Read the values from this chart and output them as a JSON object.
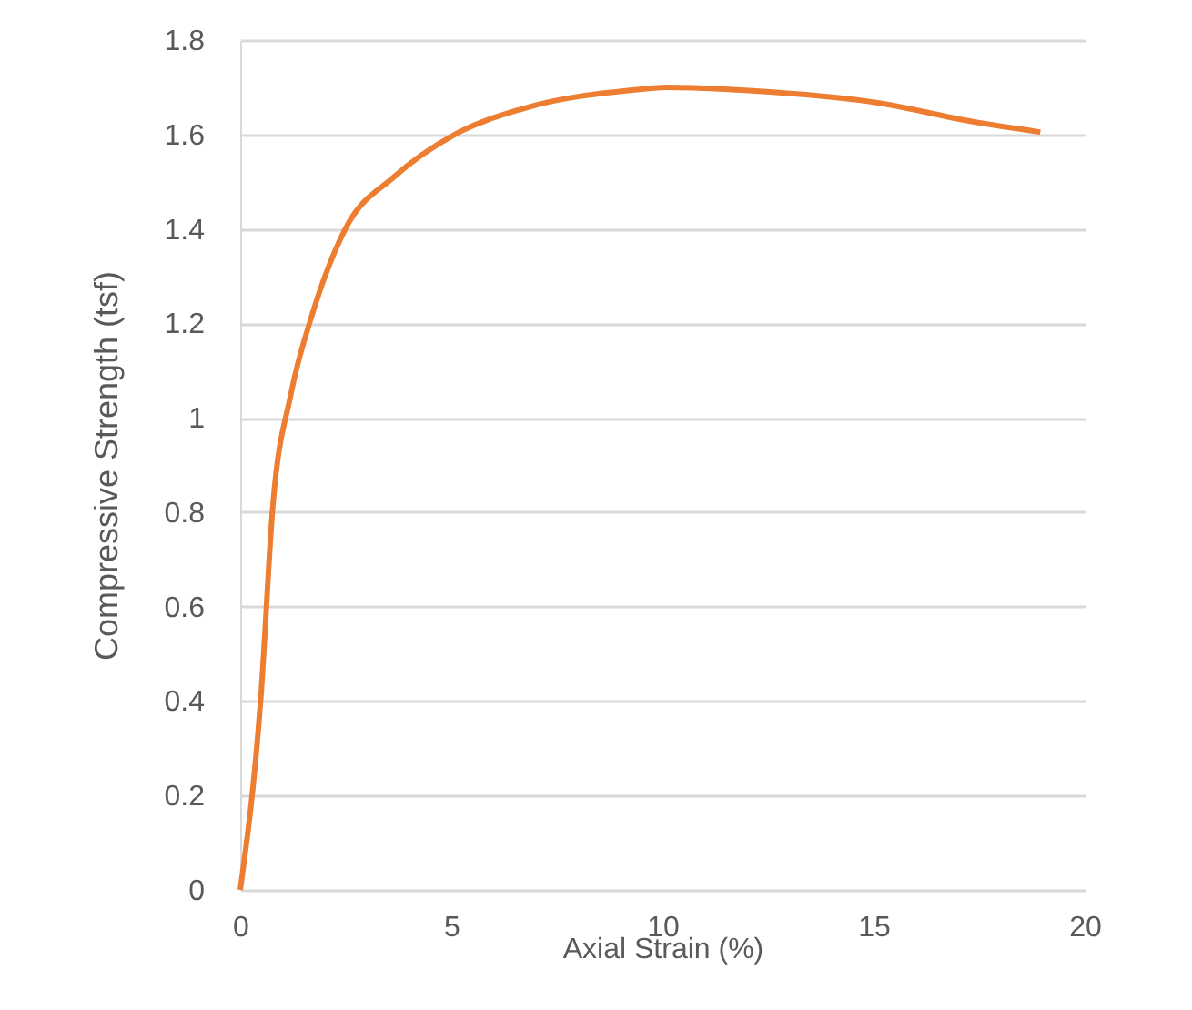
{
  "chart_data": {
    "type": "line",
    "xlabel": "Axial Strain (%)",
    "ylabel": "Compressive Strength (tsf)",
    "x": [
      0,
      0.49,
      0.77,
      1.2,
      1.71,
      2.49,
      3.64,
      5.08,
      6.67,
      9.4,
      10.1,
      12.55,
      15.1,
      17.3,
      18.95
    ],
    "series": [
      {
        "color": "#ed7d31",
        "values": [
          0,
          0.41,
          0.81,
          1.05,
          1.22,
          1.4,
          1.51,
          1.6,
          1.654,
          1.695,
          1.7,
          1.69,
          1.667,
          1.628,
          1.605
        ]
      }
    ],
    "xlim": [
      0,
      20
    ],
    "xticks": [
      0,
      5,
      10,
      15,
      20
    ],
    "ylim": [
      0,
      1.8
    ],
    "yticks": [
      0,
      0.2,
      0.4,
      0.6,
      0.8,
      1,
      1.2,
      1.4,
      1.6,
      1.8
    ],
    "grid": "y",
    "marker": "none",
    "line_style": "solid"
  }
}
